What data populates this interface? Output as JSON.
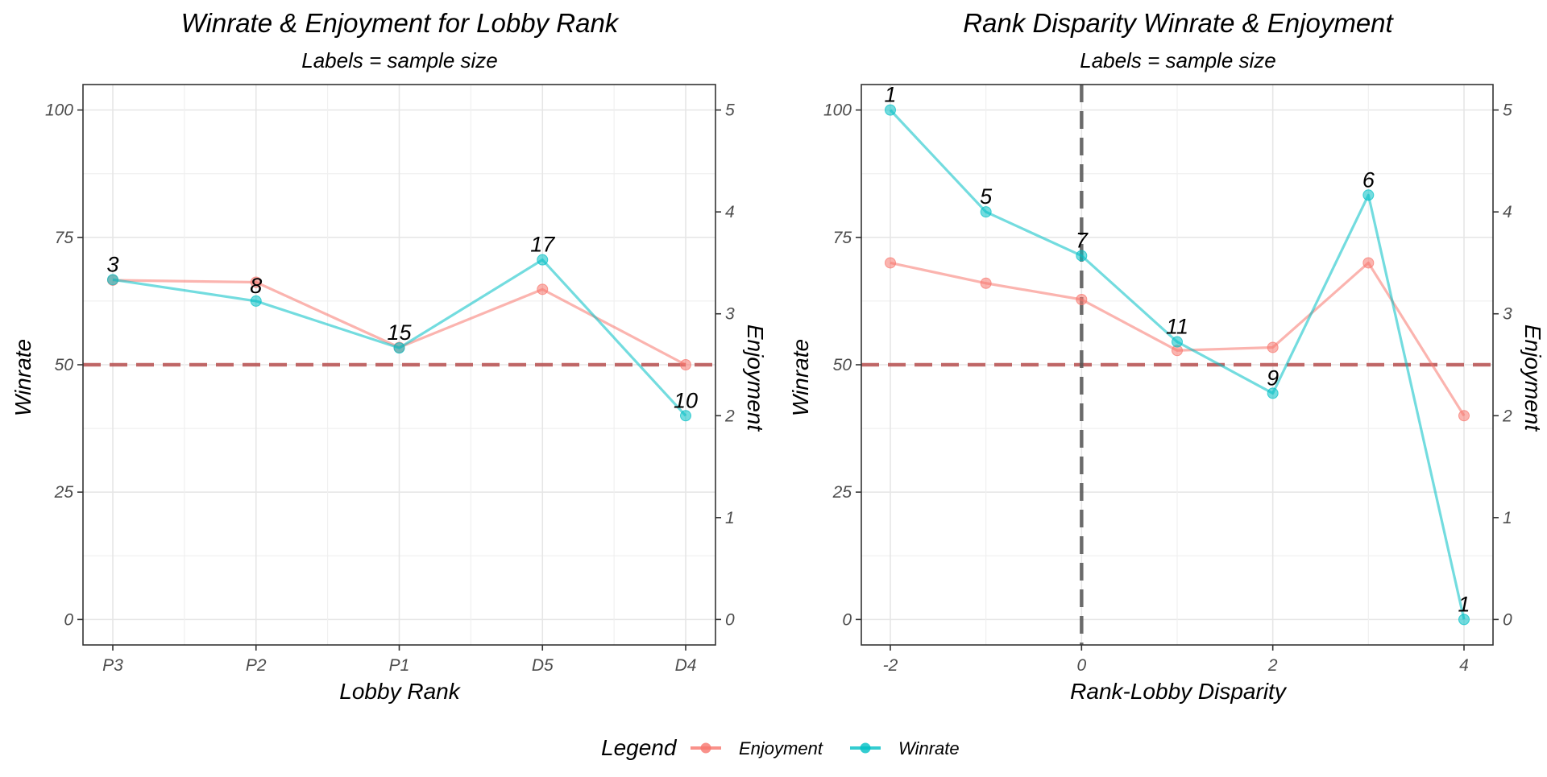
{
  "colors": {
    "enjoyment": "#F8766D",
    "winrate": "#00BFC4",
    "ref_h": "#b03a3a",
    "ref_v": "#555555"
  },
  "legend": {
    "title": "Legend",
    "items": [
      {
        "label": "Enjoyment",
        "color": "#F8766D"
      },
      {
        "label": "Winrate",
        "color": "#00BFC4"
      }
    ]
  },
  "chart_data": [
    {
      "type": "line",
      "title": "Winrate & Enjoyment for Lobby Rank",
      "subtitle": "Labels = sample size",
      "xlabel": "Lobby Rank",
      "ylabel": "Winrate",
      "y2label": "Enjoyment",
      "x_scale": "categorical",
      "categories": [
        "P3",
        "P2",
        "P1",
        "D5",
        "D4"
      ],
      "xlim": [
        0,
        4
      ],
      "ylim": [
        -5,
        105
      ],
      "y_ticks": [
        0,
        25,
        50,
        75,
        100
      ],
      "y2_ticks": [
        0,
        1,
        2,
        3,
        4,
        5
      ],
      "hline": 50,
      "grid": true,
      "series": [
        {
          "name": "Enjoyment",
          "axis": "right",
          "values": [
            3.33,
            3.31,
            2.67,
            3.24,
            2.5
          ]
        },
        {
          "name": "Winrate",
          "axis": "left",
          "values": [
            66.7,
            62.5,
            53.3,
            70.6,
            40.0
          ],
          "labels": [
            "3",
            "8",
            "15",
            "17",
            "10"
          ]
        }
      ]
    },
    {
      "type": "line",
      "title": "Rank Disparity Winrate & Enjoyment",
      "subtitle": "Labels = sample size",
      "xlabel": "Rank-Lobby Disparity",
      "ylabel": "Winrate",
      "y2label": "Enjoyment",
      "x_scale": "numeric",
      "x": [
        -2,
        -1,
        0,
        1,
        2,
        3,
        4
      ],
      "x_ticks": [
        -2,
        0,
        2,
        4
      ],
      "xlim": [
        -2,
        4
      ],
      "ylim": [
        -5,
        105
      ],
      "y_ticks": [
        0,
        25,
        50,
        75,
        100
      ],
      "y2_ticks": [
        0,
        1,
        2,
        3,
        4,
        5
      ],
      "hline": 50,
      "vline": 0,
      "grid": true,
      "series": [
        {
          "name": "Enjoyment",
          "axis": "right",
          "values": [
            3.5,
            3.3,
            3.14,
            2.64,
            2.67,
            3.5,
            2.0
          ]
        },
        {
          "name": "Winrate",
          "axis": "left",
          "values": [
            100,
            80,
            71.4,
            54.5,
            44.4,
            83.3,
            0
          ],
          "labels": [
            "1",
            "5",
            "7",
            "11",
            "9",
            "6",
            "1"
          ]
        }
      ]
    }
  ]
}
